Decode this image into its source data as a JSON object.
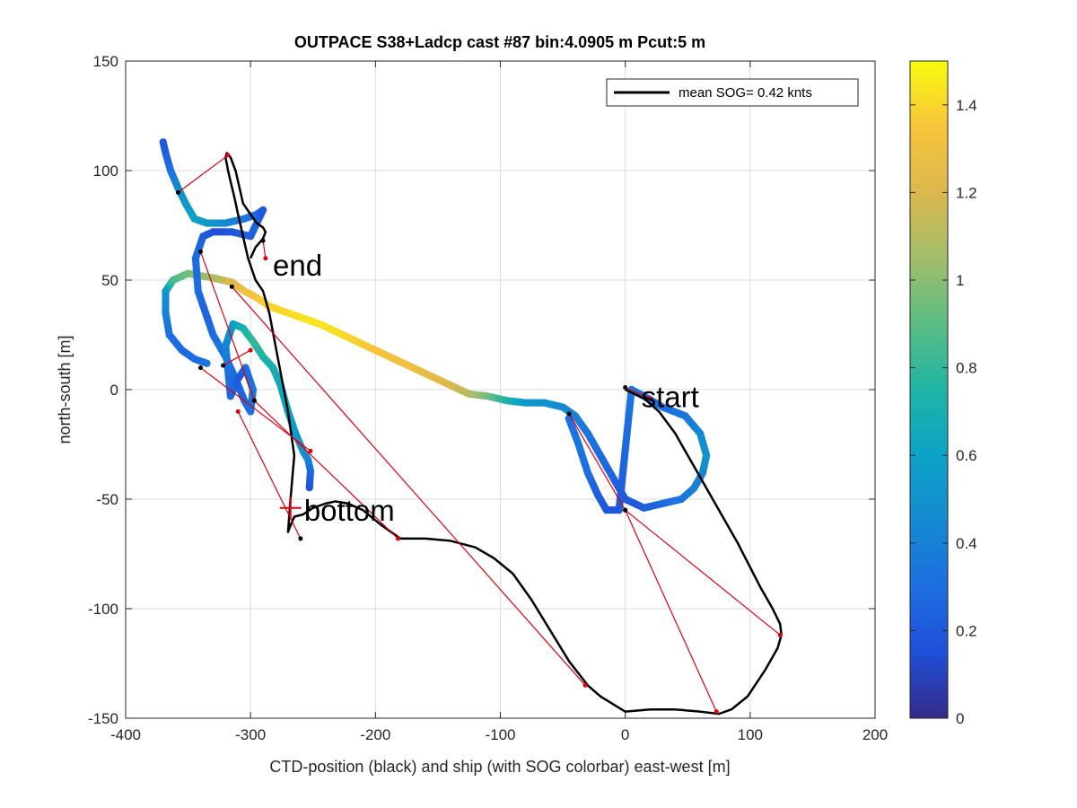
{
  "chart_data": {
    "type": "scatter",
    "title": "OUTPACE S38+Ladcp cast #87 bin:4.0905 m  Pcut:5 m",
    "xlabel": "CTD-position (black) and ship (with SOG colorbar) east-west [m]",
    "ylabel": "north-south [m]",
    "xlim": [
      -400,
      200
    ],
    "ylim": [
      -150,
      150
    ],
    "xticks": [
      "-400",
      "-300",
      "-200",
      "-100",
      "0",
      "100",
      "200"
    ],
    "yticks": [
      "150",
      "100",
      "50",
      "0",
      "-50",
      "-100",
      "-150"
    ],
    "grid": true,
    "legend": {
      "label": "mean SOG=  0.42 knts",
      "position": "top-right"
    },
    "colorbar": {
      "range": [
        0,
        1.5
      ],
      "ticks": [
        "0",
        "0.2",
        "0.4",
        "0.6",
        "0.8",
        "1",
        "1.2",
        "1.4"
      ],
      "colormap": "parula"
    },
    "annotations": [
      {
        "text": "start",
        "x": 10,
        "y": -3
      },
      {
        "text": "end",
        "x": -285,
        "y": 57
      },
      {
        "text": "bottom",
        "x": -260,
        "y": -55
      }
    ],
    "ctd_track": {
      "color": "#000000",
      "x": [
        0,
        15,
        27,
        40,
        55,
        70,
        90,
        108,
        118,
        124,
        125,
        122,
        112,
        98,
        85,
        75,
        60,
        40,
        20,
        0,
        -20,
        -30,
        -45,
        -60,
        -75,
        -90,
        -105,
        -120,
        -140,
        -160,
        -180,
        -195,
        -210,
        -222,
        -232,
        -240,
        -250,
        -258,
        -265,
        -268,
        -270,
        -268,
        -265,
        -270,
        -275,
        -280,
        -285,
        -290,
        -296,
        -302,
        -306,
        -310,
        -313,
        -316,
        -318,
        -320,
        -319,
        -316,
        -312,
        -310,
        -308,
        -306,
        -300,
        -295,
        -290,
        -288,
        -290,
        -296,
        -300
      ],
      "y": [
        0,
        -4,
        -10,
        -20,
        -35,
        -50,
        -70,
        -90,
        -100,
        -107,
        -112,
        -118,
        -128,
        -140,
        -146,
        -148,
        -147,
        -146,
        -146,
        -147,
        -140,
        -135,
        -124,
        -110,
        -96,
        -84,
        -77,
        -72,
        -69,
        -68,
        -68,
        -62,
        -55,
        -52,
        -51,
        -52,
        -54,
        -57,
        -58,
        -62,
        -65,
        -50,
        -30,
        -10,
        5,
        20,
        35,
        45,
        50,
        60,
        70,
        80,
        88,
        95,
        100,
        106,
        108,
        106,
        100,
        95,
        90,
        85,
        80,
        76,
        74,
        72,
        69,
        65,
        60
      ]
    },
    "ship_track": {
      "x": [
        -335,
        -345,
        -355,
        -365,
        -368,
        -368,
        -362,
        -350,
        -330,
        -315,
        -305,
        -295,
        -285,
        -275,
        -265,
        -255,
        -245,
        -230,
        -215,
        -200,
        -185,
        -170,
        -155,
        -140,
        -125,
        -110,
        -95,
        -80,
        -65,
        -50,
        -40,
        -30,
        -20,
        -10,
        0,
        15,
        30,
        45,
        55,
        62,
        65,
        60,
        48,
        30,
        15,
        5,
        -5,
        -15,
        -22,
        -30,
        -38,
        -46
      ],
      "y": [
        12,
        14,
        18,
        25,
        35,
        45,
        50,
        53,
        51,
        49,
        45,
        42,
        38,
        36,
        34,
        32,
        30,
        26,
        22,
        18,
        14,
        10,
        6,
        2,
        -2,
        -3,
        -5,
        -6,
        -6,
        -8,
        -12,
        -20,
        -30,
        -40,
        -50,
        -54,
        -52,
        -50,
        -45,
        -38,
        -30,
        -20,
        -12,
        -8,
        -3,
        0,
        -55,
        -55,
        -48,
        -38,
        -24,
        -12
      ],
      "sog": [
        0.35,
        0.3,
        0.28,
        0.3,
        0.4,
        0.5,
        0.85,
        0.95,
        1.05,
        1.2,
        1.3,
        1.35,
        1.38,
        1.4,
        1.42,
        1.43,
        1.44,
        1.42,
        1.38,
        1.35,
        1.32,
        1.3,
        1.26,
        1.2,
        1.1,
        0.95,
        0.75,
        0.55,
        0.5,
        0.45,
        0.4,
        0.35,
        0.3,
        0.25,
        0.2,
        0.22,
        0.28,
        0.33,
        0.4,
        0.42,
        0.5,
        0.45,
        0.35,
        0.3,
        0.3,
        0.35,
        0.2,
        0.18,
        0.22,
        0.3,
        0.35,
        0.3
      ]
    },
    "ship_track_west": {
      "x": [
        -370,
        -368,
        -364,
        -358,
        -352,
        -345,
        -335,
        -320,
        -305,
        -295,
        -290,
        -300,
        -315,
        -330,
        -338,
        -344,
        -342,
        -336,
        -330,
        -320,
        -312,
        -305,
        -300,
        -298,
        -304,
        -310,
        -316,
        -320,
        -314,
        -306,
        -298,
        -290,
        -282,
        -276,
        -270,
        -264,
        -258,
        -254,
        -252,
        -253
      ],
      "y": [
        113,
        108,
        100,
        92,
        85,
        78,
        76,
        76,
        78,
        80,
        82,
        70,
        72,
        72,
        70,
        60,
        45,
        35,
        25,
        15,
        5,
        -5,
        -10,
        0,
        10,
        5,
        -3,
        20,
        30,
        28,
        22,
        15,
        10,
        2,
        -10,
        -20,
        -28,
        -32,
        -37,
        -46
      ],
      "sog": [
        0.2,
        0.22,
        0.3,
        0.45,
        0.55,
        0.6,
        0.55,
        0.45,
        0.35,
        0.3,
        0.2,
        0.25,
        0.2,
        0.15,
        0.2,
        0.3,
        0.3,
        0.25,
        0.3,
        0.35,
        0.3,
        0.25,
        0.3,
        0.35,
        0.3,
        0.2,
        0.25,
        0.4,
        0.55,
        0.7,
        0.8,
        0.75,
        0.7,
        0.65,
        0.6,
        0.55,
        0.5,
        0.45,
        0.3,
        0.15
      ]
    },
    "connectors": {
      "color": "#e0000f",
      "pairs": [
        [
          [
            0,
            1
          ],
          [
            20,
            -4
          ]
        ],
        [
          [
            -45,
            -11
          ],
          [
            0,
            -55
          ]
        ],
        [
          [
            0,
            -55
          ],
          [
            124,
            -112
          ]
        ],
        [
          [
            0,
            -55
          ],
          [
            73,
            -147
          ]
        ],
        [
          [
            -315,
            47
          ],
          [
            -32,
            -135
          ]
        ],
        [
          [
            -340,
            63
          ],
          [
            -297,
            -5
          ]
        ],
        [
          [
            -297,
            -5
          ],
          [
            -182,
            -68
          ]
        ],
        [
          [
            -260,
            -68
          ],
          [
            -310,
            -10
          ]
        ],
        [
          [
            -358,
            90
          ],
          [
            -318,
            107
          ]
        ],
        [
          [
            -290,
            68
          ],
          [
            -288,
            60
          ]
        ],
        [
          [
            -322,
            11
          ],
          [
            -300,
            18
          ]
        ],
        [
          [
            -340,
            10
          ],
          [
            -252,
            -28
          ]
        ]
      ]
    }
  }
}
